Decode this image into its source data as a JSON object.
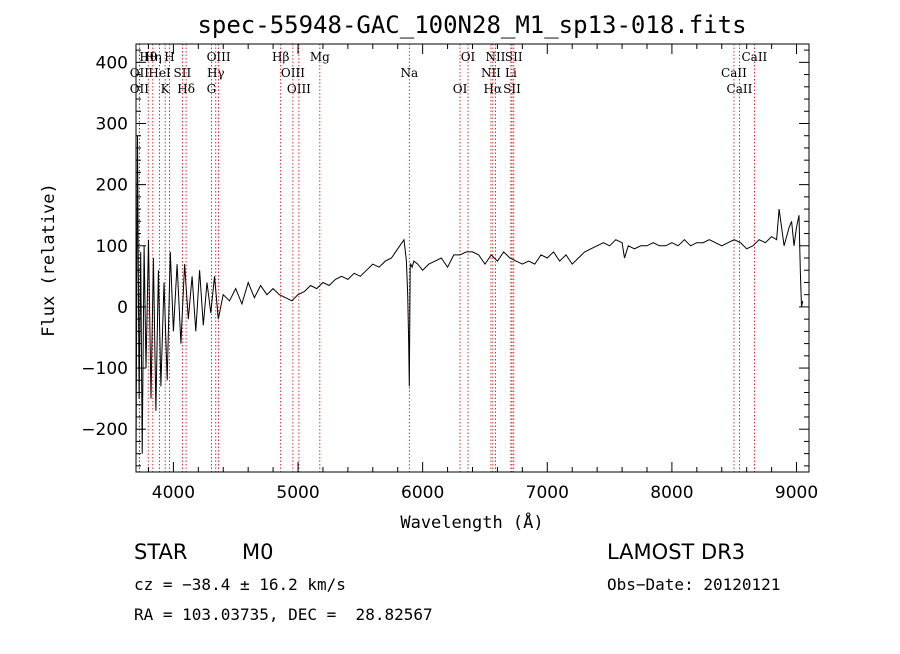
{
  "chart_data": {
    "type": "line",
    "title": "spec-55948-GAC_100N28_M1_sp13-018.fits",
    "xlabel": "Wavelength (Å)",
    "ylabel": "Flux (relative)",
    "xlim": [
      3700,
      9100
    ],
    "ylim": [
      -270,
      430
    ],
    "x_ticks": [
      4000,
      5000,
      6000,
      7000,
      8000,
      9000
    ],
    "x_tick_labels": [
      "4000",
      "5000",
      "6000",
      "7000",
      "8000",
      "9000"
    ],
    "y_ticks": [
      -200,
      -100,
      0,
      100,
      200,
      300,
      400
    ],
    "y_tick_labels": [
      "−200",
      "−100",
      "0",
      "100",
      "200",
      "300",
      "400"
    ],
    "series": [
      {
        "name": "flux",
        "x": [
          3700,
          3712,
          3725,
          3738,
          3750,
          3765,
          3780,
          3800,
          3820,
          3840,
          3860,
          3880,
          3900,
          3925,
          3950,
          3975,
          4000,
          4030,
          4060,
          4090,
          4120,
          4150,
          4180,
          4210,
          4240,
          4270,
          4300,
          4330,
          4360,
          4400,
          4450,
          4500,
          4550,
          4600,
          4650,
          4700,
          4750,
          4800,
          4850,
          4900,
          4950,
          5000,
          5050,
          5100,
          5150,
          5200,
          5250,
          5300,
          5350,
          5400,
          5450,
          5500,
          5550,
          5600,
          5650,
          5700,
          5750,
          5800,
          5850,
          5870,
          5880,
          5888,
          5893,
          5896,
          5900,
          5905,
          5915,
          5930,
          5960,
          6000,
          6050,
          6100,
          6150,
          6200,
          6250,
          6300,
          6350,
          6400,
          6450,
          6500,
          6550,
          6600,
          6650,
          6700,
          6750,
          6800,
          6850,
          6900,
          6950,
          7000,
          7050,
          7100,
          7150,
          7200,
          7250,
          7300,
          7350,
          7400,
          7450,
          7500,
          7550,
          7600,
          7620,
          7650,
          7700,
          7750,
          7800,
          7850,
          7900,
          7950,
          8000,
          8050,
          8100,
          8150,
          8200,
          8250,
          8300,
          8350,
          8400,
          8450,
          8500,
          8550,
          8600,
          8650,
          8700,
          8750,
          8800,
          8840,
          8860,
          8900,
          8940,
          8960,
          8980,
          9000,
          9020,
          9030,
          9040,
          9050
        ],
        "y": [
          -260,
          280,
          -150,
          90,
          -240,
          100,
          -100,
          110,
          -150,
          80,
          -170,
          60,
          -130,
          40,
          -120,
          90,
          -40,
          70,
          -60,
          70,
          -20,
          50,
          -40,
          60,
          -30,
          40,
          -10,
          50,
          -20,
          20,
          10,
          30,
          5,
          40,
          15,
          35,
          20,
          30,
          20,
          15,
          10,
          20,
          25,
          35,
          30,
          40,
          35,
          45,
          50,
          45,
          55,
          50,
          60,
          70,
          65,
          75,
          80,
          95,
          110,
          75,
          20,
          -60,
          -130,
          -40,
          65,
          70,
          65,
          75,
          70,
          60,
          70,
          75,
          80,
          65,
          85,
          85,
          90,
          90,
          85,
          70,
          85,
          75,
          90,
          80,
          75,
          70,
          75,
          70,
          85,
          80,
          90,
          75,
          85,
          70,
          80,
          90,
          95,
          100,
          105,
          100,
          110,
          105,
          80,
          100,
          95,
          100,
          100,
          105,
          100,
          100,
          105,
          100,
          110,
          100,
          105,
          105,
          110,
          105,
          100,
          105,
          110,
          105,
          95,
          100,
          110,
          105,
          115,
          110,
          160,
          100,
          130,
          140,
          100,
          130,
          150,
          60,
          0,
          10
        ]
      }
    ],
    "spectral_lines": [
      {
        "label": "Hθ",
        "wavelength": 3798
      },
      {
        "label": "OII",
        "wavelength": 3727
      },
      {
        "label": "OII",
        "wavelength": 3727
      },
      {
        "label": "Hη",
        "wavelength": 3835
      },
      {
        "label": "HeI",
        "wavelength": 3889
      },
      {
        "label": "K",
        "wavelength": 3934
      },
      {
        "label": "H",
        "wavelength": 3969
      },
      {
        "label": "SII",
        "wavelength": 4072
      },
      {
        "label": "Hδ",
        "wavelength": 4102
      },
      {
        "label": "OIII",
        "wavelength": 4363
      },
      {
        "label": "Hγ",
        "wavelength": 4340
      },
      {
        "label": "G",
        "wavelength": 4305
      },
      {
        "label": "Hβ",
        "wavelength": 4861
      },
      {
        "label": "OIII",
        "wavelength": 4959
      },
      {
        "label": "OIII",
        "wavelength": 5007
      },
      {
        "label": "Mg",
        "wavelength": 5175
      },
      {
        "label": "Na",
        "wavelength": 5893
      },
      {
        "label": "OI",
        "wavelength": 6300
      },
      {
        "label": "OI",
        "wavelength": 6364
      },
      {
        "label": "NII",
        "wavelength": 6548
      },
      {
        "label": "Hα",
        "wavelength": 6563
      },
      {
        "label": "NII",
        "wavelength": 6584
      },
      {
        "label": "Li",
        "wavelength": 6708
      },
      {
        "label": "SII",
        "wavelength": 6717
      },
      {
        "label": "SII",
        "wavelength": 6731
      },
      {
        "label": "CaII",
        "wavelength": 8498
      },
      {
        "label": "CaII",
        "wavelength": 8542
      },
      {
        "label": "CaII",
        "wavelength": 8662
      }
    ],
    "grid": false,
    "line_color": "#000000",
    "marker_color": "#cc0000"
  },
  "info": {
    "object_class": "STAR",
    "subclass": "M0",
    "survey": "LAMOST DR3",
    "redshift_line": "cz = −38.4 ± 16.2 km/s",
    "obs_date_line": "Obs−Date: 20120121",
    "coords_line": "RA = 103.03735, DEC =  28.82567"
  }
}
